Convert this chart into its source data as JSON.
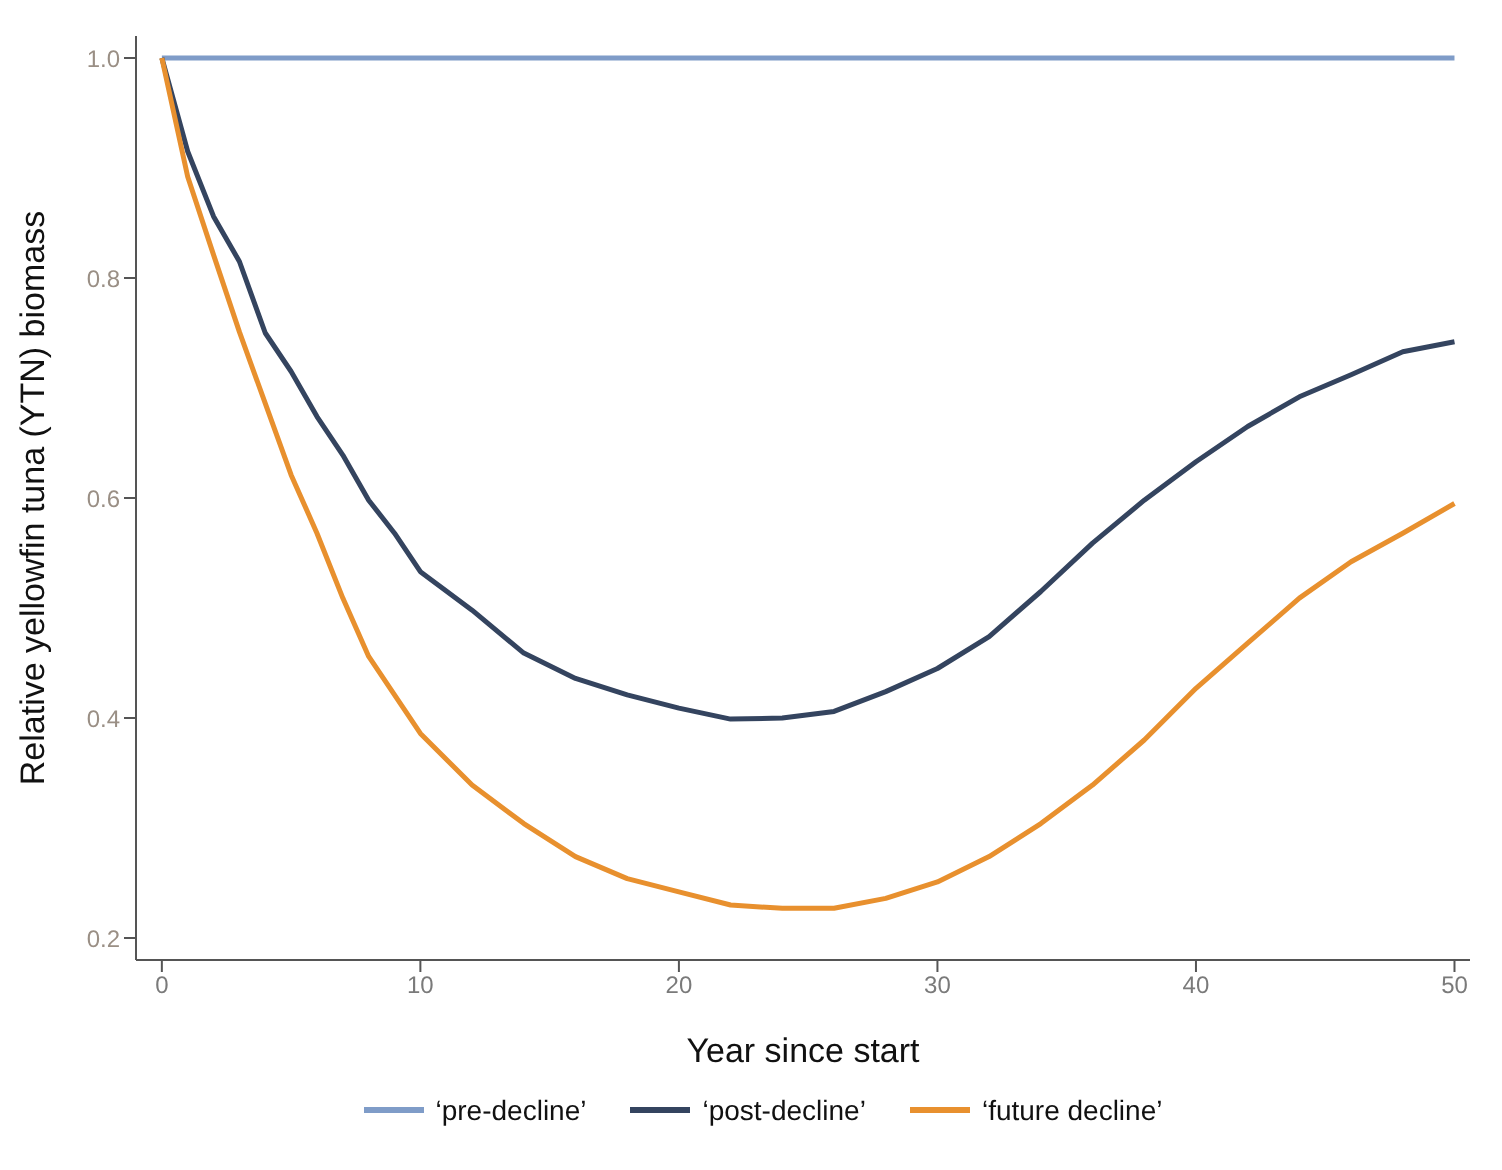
{
  "chart_data": {
    "type": "line",
    "xlabel": "Year since start",
    "ylabel": "Relative yellowfin tuna (YTN) biomass",
    "xlim": [
      -1,
      50.6
    ],
    "xticks": [
      0,
      10,
      20,
      30,
      40,
      50
    ],
    "ylim": [
      0.18,
      1.02
    ],
    "yticks": [
      0.2,
      0.4,
      0.6,
      0.8,
      {
        "value": 1,
        "label": "1.0"
      }
    ],
    "grid": false,
    "legend": "bottom",
    "marker": "none",
    "line_style": "solid",
    "series": [
      {
        "name": "‘pre-decline’",
        "color": "#7f9cc8",
        "x": [
          0,
          50
        ],
        "values": [
          1.0,
          1.0
        ]
      },
      {
        "name": "‘post-decline’",
        "color": "#34445f",
        "x": [
          0,
          1,
          2,
          3,
          4,
          5,
          6,
          7,
          8,
          9,
          10,
          12,
          14,
          16,
          18,
          20,
          22,
          24,
          26,
          28,
          30,
          32,
          34,
          36,
          38,
          40,
          42,
          44,
          46,
          48,
          50
        ],
        "values": [
          1.0,
          0.915,
          0.856,
          0.815,
          0.75,
          0.715,
          0.674,
          0.639,
          0.598,
          0.568,
          0.533,
          0.498,
          0.459,
          0.436,
          0.421,
          0.409,
          0.399,
          0.4,
          0.406,
          0.424,
          0.445,
          0.474,
          0.515,
          0.559,
          0.598,
          0.633,
          0.665,
          0.692,
          0.712,
          0.733,
          0.742
        ]
      },
      {
        "name": "‘future decline’",
        "color": "#e8902e",
        "x": [
          0,
          1,
          2,
          3,
          4,
          5,
          6,
          7,
          8,
          9,
          10,
          12,
          14,
          16,
          18,
          20,
          22,
          24,
          26,
          28,
          30,
          32,
          34,
          36,
          38,
          40,
          42,
          44,
          46,
          48,
          50
        ],
        "values": [
          1.0,
          0.892,
          0.821,
          0.751,
          0.686,
          0.621,
          0.568,
          0.509,
          0.456,
          0.421,
          0.386,
          0.339,
          0.304,
          0.274,
          0.254,
          0.242,
          0.23,
          0.227,
          0.227,
          0.236,
          0.251,
          0.274,
          0.304,
          0.339,
          0.38,
          0.427,
          0.468,
          0.509,
          0.542,
          0.568,
          0.595
        ]
      }
    ]
  }
}
